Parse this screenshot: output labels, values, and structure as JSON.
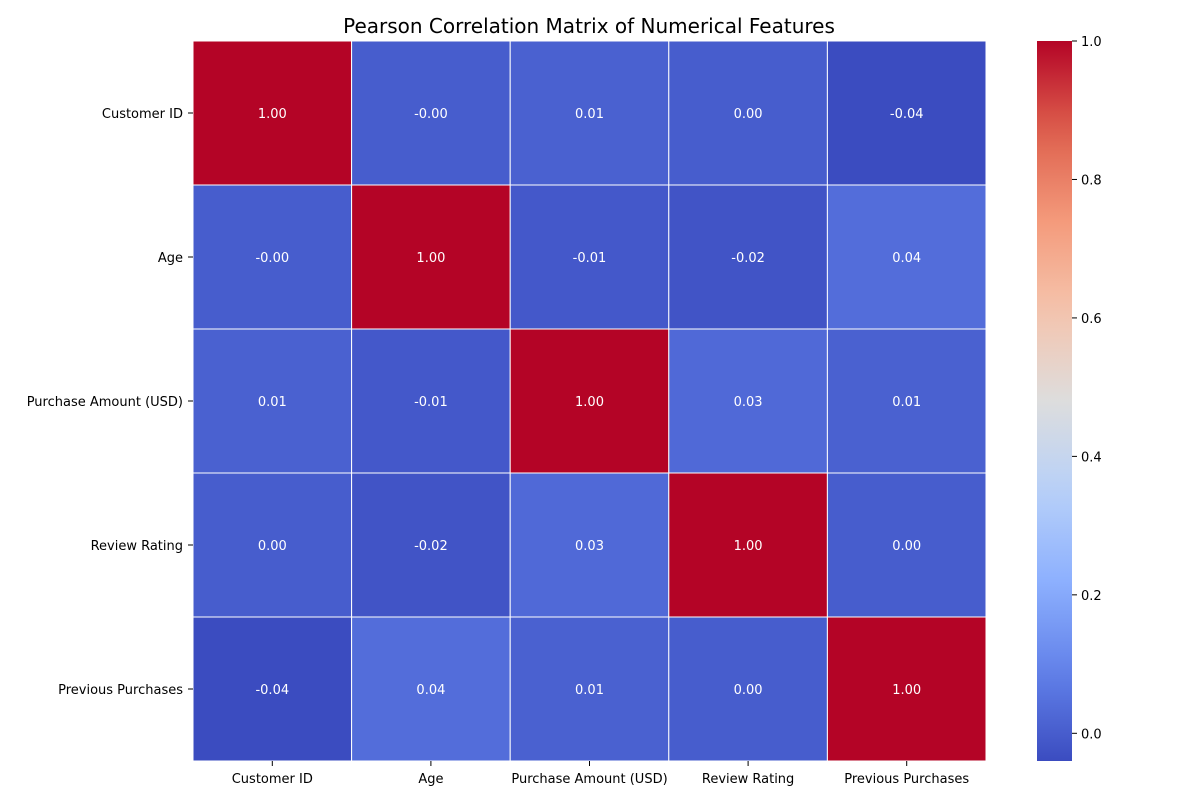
{
  "chart_data": {
    "type": "heatmap",
    "title": "Pearson Correlation Matrix of Numerical Features",
    "x_labels": [
      "Customer ID",
      "Age",
      "Purchase Amount (USD)",
      "Review Rating",
      "Previous Purchases"
    ],
    "y_labels": [
      "Customer ID",
      "Age",
      "Purchase Amount (USD)",
      "Review Rating",
      "Previous Purchases"
    ],
    "values": [
      [
        1.0,
        -0.0,
        0.01,
        0.0,
        -0.04
      ],
      [
        -0.0,
        1.0,
        -0.01,
        -0.02,
        0.04
      ],
      [
        0.01,
        -0.01,
        1.0,
        0.03,
        0.01
      ],
      [
        0.0,
        -0.02,
        0.03,
        1.0,
        0.0
      ],
      [
        -0.04,
        0.04,
        0.01,
        0.0,
        1.0
      ]
    ],
    "cell_labels": [
      [
        "1.00",
        "-0.00",
        "0.01",
        "0.00",
        "-0.04"
      ],
      [
        "-0.00",
        "1.00",
        "-0.01",
        "-0.02",
        "0.04"
      ],
      [
        "0.01",
        "-0.01",
        "1.00",
        "0.03",
        "0.01"
      ],
      [
        "0.00",
        "-0.02",
        "0.03",
        "1.00",
        "0.00"
      ],
      [
        "-0.04",
        "0.04",
        "0.01",
        "0.00",
        "1.00"
      ]
    ],
    "colormap": "coolwarm",
    "color_range": [
      -0.04,
      1.0
    ],
    "colorbar_ticks": [
      0.0,
      0.2,
      0.4,
      0.6,
      0.8,
      1.0
    ],
    "colorbar_tick_labels": [
      "0.0",
      "0.2",
      "0.4",
      "0.6",
      "0.8",
      "1.0"
    ],
    "cell_text_color": "#ffffff",
    "cell_border_color": "#ffffff",
    "annotated": true
  }
}
